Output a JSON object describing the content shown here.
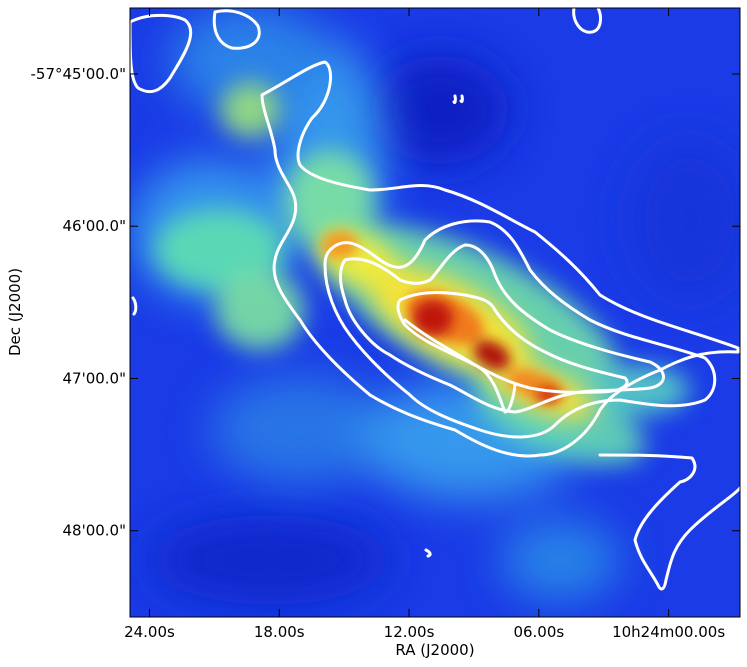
{
  "chart_data": {
    "type": "heatmap",
    "title": "",
    "xlabel": "RA (J2000)",
    "ylabel": "Dec (J2000)",
    "colormap": "jet",
    "contour_color": "#ffffff",
    "x_tick_labels": [
      "24.00s",
      "18.00s",
      "12.00s",
      "06.00s",
      "10h24m00.00s"
    ],
    "y_tick_labels": [
      "-57°45'00.0\"",
      "46'00.0\"",
      "47'00.0\"",
      "48'00.0\""
    ],
    "x_ticks_sec": [
      24,
      18,
      12,
      6,
      0
    ],
    "y_ticks_arcsec_south_of_-57_45_00": [
      0,
      60,
      120,
      180
    ],
    "x_range_sec": [
      24.9,
      -3.3
    ],
    "y_range_arcsec_south_of_-57_45_00": [
      -26,
      214
    ],
    "ra_axis": "10h24m",
    "dec_axis": "-57°"
  }
}
